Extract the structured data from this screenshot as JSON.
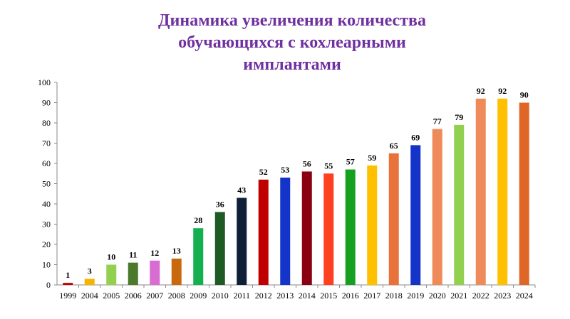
{
  "title_lines": [
    "Динамика увеличения количества",
    "обучающихся с кохлеарными",
    "имплантами"
  ],
  "chart_data": {
    "type": "bar",
    "title": "Динамика увеличения количества обучающихся с кохлеарными имплантами",
    "categories": [
      "1999",
      "2004",
      "2005",
      "2006",
      "2007",
      "2008",
      "2009",
      "2010",
      "2011",
      "2012",
      "2013",
      "2014",
      "2015",
      "2016",
      "2017",
      "2018",
      "2019",
      "2020",
      "2021",
      "2022",
      "2023",
      "2024"
    ],
    "values": [
      1,
      3,
      10,
      11,
      12,
      13,
      28,
      36,
      43,
      52,
      53,
      56,
      55,
      57,
      59,
      65,
      69,
      77,
      79,
      92,
      92,
      90
    ],
    "colors": [
      "#c00000",
      "#f5b400",
      "#92d050",
      "#4a7a2a",
      "#d86cd0",
      "#c8690e",
      "#14b050",
      "#1e5a24",
      "#0f1f38",
      "#c00000",
      "#1433c8",
      "#8b0010",
      "#ff4020",
      "#16a020",
      "#ffc000",
      "#e8733a",
      "#1433c8",
      "#ef8a5a",
      "#92d050",
      "#ef8a5a",
      "#ffc000",
      "#e06628"
    ],
    "xlabel": "",
    "ylabel": "",
    "ylim": [
      0,
      100
    ],
    "yticks": [
      0,
      10,
      20,
      30,
      40,
      50,
      60,
      70,
      80,
      90,
      100
    ],
    "grid": false,
    "legend": "none",
    "data_labels": true
  }
}
